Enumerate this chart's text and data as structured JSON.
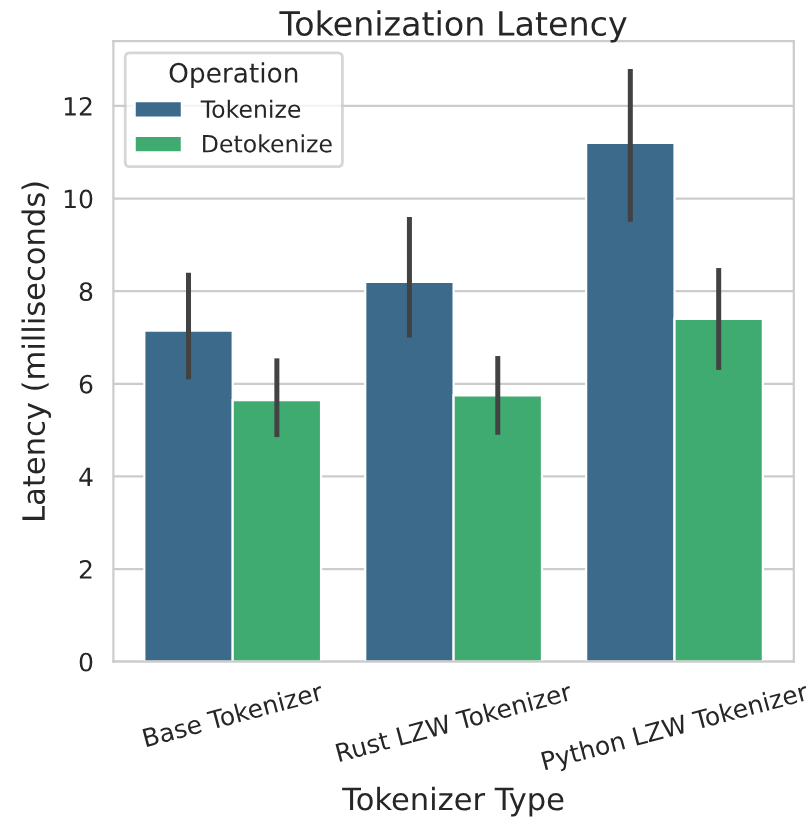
{
  "chart_data": {
    "type": "bar",
    "title": "Tokenization Latency",
    "xlabel": "Tokenizer Type",
    "ylabel": "Latency (milliseconds)",
    "legend_title": "Operation",
    "categories": [
      "Base Tokenizer",
      "Rust LZW Tokenizer",
      "Python LZW Tokenizer"
    ],
    "series": [
      {
        "name": "Tokenize",
        "color": "#3b6a8a",
        "values": [
          7.15,
          8.2,
          11.2
        ],
        "errors": [
          [
            6.1,
            8.4
          ],
          [
            7.0,
            9.6
          ],
          [
            9.5,
            12.8
          ]
        ]
      },
      {
        "name": "Detokenize",
        "color": "#40ab70",
        "values": [
          5.65,
          5.75,
          7.4
        ],
        "errors": [
          [
            4.85,
            6.55
          ],
          [
            4.9,
            6.6
          ],
          [
            6.3,
            8.5
          ]
        ]
      }
    ],
    "ylim": [
      0,
      13.4
    ],
    "yticks": [
      0,
      2,
      4,
      6,
      8,
      10,
      12
    ],
    "grid": "y",
    "legend": "top left"
  }
}
